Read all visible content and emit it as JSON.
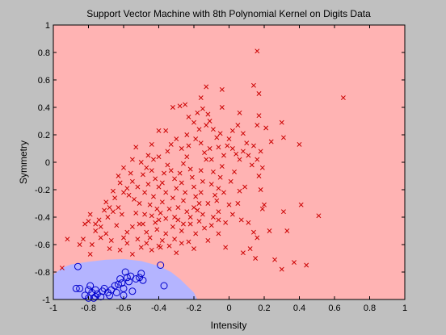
{
  "chart_data": {
    "type": "scatter",
    "title": "Support Vector Machine with 8th Polynomial Kernel on Digits Data",
    "xlabel": "Intensity",
    "ylabel": "Symmetry",
    "xlim": [
      -1,
      1
    ],
    "ylim": [
      -1,
      1
    ],
    "x_ticks": [
      "-1",
      "-0.8",
      "-0.6",
      "-0.4",
      "-0.2",
      "0",
      "0.2",
      "0.4",
      "0.6",
      "0.8",
      "1"
    ],
    "y_ticks": [
      "-1",
      "-0.8",
      "-0.6",
      "-0.4",
      "-0.2",
      "0",
      "0.2",
      "0.4",
      "0.6",
      "0.8",
      "1"
    ],
    "grid": false,
    "legend": "none",
    "colors": {
      "background": "#c0c0c0",
      "region_positive": "#ffb3b3",
      "region_negative": "#b4b4ff",
      "marker_x": "#cc0000",
      "marker_o": "#0000cc"
    },
    "decision_boundary": [
      [
        -1.0,
        -0.82
      ],
      [
        -0.95,
        -0.77
      ],
      [
        -0.9,
        -0.745
      ],
      [
        -0.8,
        -0.725
      ],
      [
        -0.7,
        -0.71
      ],
      [
        -0.6,
        -0.705
      ],
      [
        -0.5,
        -0.72
      ],
      [
        -0.4,
        -0.755
      ],
      [
        -0.33,
        -0.8
      ],
      [
        -0.28,
        -0.85
      ],
      [
        -0.24,
        -0.9
      ],
      [
        -0.2,
        -0.95
      ],
      [
        -0.18,
        -1.0
      ]
    ],
    "series": [
      {
        "marker": "x",
        "points": [
          [
            0.16,
            0.81
          ],
          [
            0.65,
            0.47
          ],
          [
            0.14,
            0.56
          ],
          [
            0.17,
            0.5
          ],
          [
            -0.13,
            0.55
          ],
          [
            -0.04,
            0.53
          ],
          [
            -0.16,
            0.47
          ],
          [
            -0.04,
            0.4
          ],
          [
            -0.15,
            0.39
          ],
          [
            -0.25,
            0.42
          ],
          [
            -0.28,
            0.41
          ],
          [
            -0.32,
            0.4
          ],
          [
            -0.12,
            0.35
          ],
          [
            0.06,
            0.36
          ],
          [
            0.17,
            0.34
          ],
          [
            0.3,
            0.29
          ],
          [
            0.16,
            0.27
          ],
          [
            0.21,
            0.25
          ],
          [
            0.31,
            0.18
          ],
          [
            0.4,
            0.13
          ],
          [
            0.24,
            0.15
          ],
          [
            0.14,
            0.12
          ],
          [
            0.18,
            0.08
          ],
          [
            0.02,
            0.1
          ],
          [
            0.04,
            0.06
          ],
          [
            -0.06,
            0.11
          ],
          [
            -0.16,
            0.14
          ],
          [
            -0.24,
            0.2
          ],
          [
            -0.36,
            0.23
          ],
          [
            -0.4,
            0.23
          ],
          [
            -0.44,
            0.13
          ],
          [
            -0.53,
            0.11
          ],
          [
            -0.55,
            0.02
          ],
          [
            -0.6,
            -0.04
          ],
          [
            -0.63,
            -0.1
          ],
          [
            -0.66,
            -0.21
          ],
          [
            -0.7,
            -0.29
          ],
          [
            -0.79,
            -0.38
          ],
          [
            -0.82,
            -0.45
          ],
          [
            -0.92,
            -0.56
          ],
          [
            -0.95,
            -0.77
          ],
          [
            -0.79,
            -0.67
          ],
          [
            -0.73,
            -0.55
          ],
          [
            -0.58,
            -0.51
          ],
          [
            -0.58,
            -0.59
          ],
          [
            -0.4,
            -0.61
          ],
          [
            -0.39,
            -0.62
          ],
          [
            -0.3,
            -0.66
          ],
          [
            -0.2,
            -0.63
          ],
          [
            -0.12,
            -0.57
          ],
          [
            -0.06,
            -0.52
          ],
          [
            -0.02,
            -0.62
          ],
          [
            0.08,
            -0.66
          ],
          [
            0.12,
            -0.63
          ],
          [
            0.15,
            -0.7
          ],
          [
            0.26,
            -0.71
          ],
          [
            0.3,
            -0.78
          ],
          [
            0.44,
            -0.75
          ],
          [
            0.37,
            -0.73
          ],
          [
            0.23,
            -0.5
          ],
          [
            0.33,
            -0.5
          ],
          [
            0.51,
            -0.39
          ],
          [
            0.41,
            -0.31
          ],
          [
            0.31,
            -0.36
          ],
          [
            0.2,
            -0.31
          ],
          [
            0.19,
            -0.34
          ],
          [
            0.18,
            -0.2
          ],
          [
            0.17,
            -0.1
          ],
          [
            0.09,
            -0.18
          ],
          [
            0.06,
            -0.21
          ],
          [
            0.05,
            -0.3
          ],
          [
            0.0,
            -0.31
          ],
          [
            -0.06,
            -0.36
          ],
          [
            -0.09,
            -0.4
          ],
          [
            -0.15,
            -0.38
          ],
          [
            -0.17,
            -0.43
          ],
          [
            -0.22,
            -0.45
          ],
          [
            -0.27,
            -0.5
          ],
          [
            -0.32,
            -0.47
          ],
          [
            -0.36,
            -0.41
          ],
          [
            -0.4,
            -0.42
          ],
          [
            -0.44,
            -0.39
          ],
          [
            -0.48,
            -0.38
          ],
          [
            -0.51,
            -0.45
          ],
          [
            -0.55,
            -0.47
          ],
          [
            -0.61,
            -0.38
          ],
          [
            -0.63,
            -0.33
          ],
          [
            -0.66,
            -0.36
          ],
          [
            -0.69,
            -0.4
          ],
          [
            -0.73,
            -0.47
          ],
          [
            -0.76,
            -0.5
          ],
          [
            -0.83,
            -0.56
          ],
          [
            -0.85,
            -0.6
          ],
          [
            -0.78,
            -0.6
          ],
          [
            -0.68,
            -0.63
          ],
          [
            -0.62,
            -0.64
          ],
          [
            -0.55,
            -0.67
          ],
          [
            -0.5,
            -0.62
          ],
          [
            -0.45,
            -0.55
          ],
          [
            -0.41,
            -0.49
          ],
          [
            -0.36,
            -0.52
          ],
          [
            -0.31,
            -0.56
          ],
          [
            -0.27,
            -0.59
          ],
          [
            -0.23,
            -0.58
          ],
          [
            -0.19,
            -0.52
          ],
          [
            -0.14,
            -0.48
          ],
          [
            -0.1,
            -0.46
          ],
          [
            -0.06,
            -0.42
          ],
          [
            -0.02,
            -0.44
          ],
          [
            0.02,
            -0.38
          ],
          [
            0.07,
            -0.42
          ],
          [
            0.11,
            -0.44
          ],
          [
            0.14,
            -0.51
          ],
          [
            0.16,
            -0.55
          ],
          [
            -0.6,
            -0.22
          ],
          [
            -0.57,
            -0.24
          ],
          [
            -0.58,
            -0.19
          ],
          [
            -0.55,
            -0.14
          ],
          [
            -0.52,
            -0.18
          ],
          [
            -0.54,
            -0.27
          ],
          [
            -0.51,
            -0.3
          ],
          [
            -0.48,
            -0.22
          ],
          [
            -0.46,
            -0.16
          ],
          [
            -0.49,
            -0.09
          ],
          [
            -0.47,
            -0.04
          ],
          [
            -0.44,
            -0.06
          ],
          [
            -0.42,
            -0.12
          ],
          [
            -0.4,
            -0.18
          ],
          [
            -0.43,
            -0.25
          ],
          [
            -0.45,
            -0.31
          ],
          [
            -0.41,
            -0.34
          ],
          [
            -0.38,
            -0.29
          ],
          [
            -0.36,
            -0.22
          ],
          [
            -0.38,
            -0.15
          ],
          [
            -0.37,
            -0.08
          ],
          [
            -0.35,
            -0.02
          ],
          [
            -0.33,
            -0.06
          ],
          [
            -0.31,
            -0.12
          ],
          [
            -0.3,
            -0.19
          ],
          [
            -0.32,
            -0.26
          ],
          [
            -0.29,
            -0.33
          ],
          [
            -0.26,
            -0.28
          ],
          [
            -0.25,
            -0.22
          ],
          [
            -0.27,
            -0.15
          ],
          [
            -0.28,
            -0.08
          ],
          [
            -0.26,
            -0.01
          ],
          [
            -0.24,
            0.04
          ],
          [
            -0.22,
            -0.05
          ],
          [
            -0.21,
            -0.11
          ],
          [
            -0.2,
            -0.18
          ],
          [
            -0.19,
            -0.25
          ],
          [
            -0.17,
            -0.3
          ],
          [
            -0.16,
            -0.22
          ],
          [
            -0.15,
            -0.14
          ],
          [
            -0.16,
            -0.06
          ],
          [
            -0.13,
            0.02
          ],
          [
            -0.14,
            0.07
          ],
          [
            -0.11,
            0.1
          ],
          [
            -0.1,
            0.02
          ],
          [
            -0.09,
            -0.07
          ],
          [
            -0.1,
            -0.16
          ],
          [
            -0.08,
            -0.24
          ],
          [
            -0.06,
            -0.19
          ],
          [
            -0.05,
            -0.11
          ],
          [
            -0.04,
            -0.03
          ],
          [
            -0.03,
            0.05
          ],
          [
            -0.01,
            0.12
          ],
          [
            0.0,
            0.17
          ],
          [
            0.02,
            0.23
          ],
          [
            0.05,
            0.27
          ],
          [
            0.08,
            0.21
          ],
          [
            0.1,
            0.14
          ],
          [
            0.11,
            0.05
          ],
          [
            0.13,
            -0.02
          ],
          [
            0.16,
            0.02
          ],
          [
            0.19,
            -0.04
          ],
          [
            -0.35,
            0.08
          ],
          [
            -0.33,
            0.13
          ],
          [
            -0.3,
            0.17
          ],
          [
            -0.27,
            0.1
          ],
          [
            -0.23,
            0.12
          ],
          [
            -0.19,
            0.17
          ],
          [
            -0.17,
            0.24
          ],
          [
            -0.13,
            0.27
          ],
          [
            -0.09,
            0.24
          ],
          [
            -0.07,
            0.18
          ],
          [
            -0.05,
            0.21
          ],
          [
            -0.2,
            0.29
          ],
          [
            -0.23,
            0.33
          ],
          [
            -0.18,
            0.36
          ],
          [
            -0.11,
            0.3
          ],
          [
            -0.4,
            0.04
          ],
          [
            -0.43,
            0.02
          ],
          [
            -0.46,
            0.05
          ],
          [
            -0.5,
            0.0
          ],
          [
            -0.56,
            -0.08
          ],
          [
            -0.62,
            -0.15
          ],
          [
            -0.65,
            -0.26
          ],
          [
            -0.68,
            -0.33
          ],
          [
            -0.71,
            -0.35
          ],
          [
            -0.74,
            -0.42
          ],
          [
            -0.76,
            -0.45
          ],
          [
            -0.8,
            -0.43
          ],
          [
            -0.64,
            -0.46
          ],
          [
            -0.7,
            -0.52
          ],
          [
            -0.67,
            -0.57
          ],
          [
            -0.6,
            -0.55
          ],
          [
            -0.52,
            -0.56
          ],
          [
            -0.47,
            -0.59
          ],
          [
            -0.44,
            -0.64
          ],
          [
            -0.38,
            -0.57
          ],
          [
            -0.34,
            -0.61
          ],
          [
            -0.29,
            -0.42
          ],
          [
            -0.24,
            -0.36
          ],
          [
            -0.2,
            -0.33
          ],
          [
            -0.12,
            -0.3
          ],
          [
            -0.07,
            -0.28
          ],
          [
            -0.03,
            -0.22
          ],
          [
            0.01,
            -0.14
          ],
          [
            0.03,
            -0.07
          ],
          [
            0.06,
            0.02
          ],
          [
            0.08,
            0.08
          ],
          [
            -0.53,
            -0.37
          ],
          [
            -0.49,
            -0.45
          ],
          [
            -0.47,
            -0.51
          ],
          [
            -0.42,
            -0.44
          ],
          [
            -0.39,
            -0.37
          ],
          [
            -0.34,
            -0.34
          ],
          [
            -0.31,
            -0.4
          ],
          [
            -0.26,
            -0.45
          ],
          [
            -0.22,
            -0.4
          ],
          [
            -0.18,
            -0.35
          ]
        ]
      },
      {
        "marker": "o",
        "points": [
          [
            -0.39,
            -0.75
          ],
          [
            -0.86,
            -0.76
          ],
          [
            -0.87,
            -0.92
          ],
          [
            -0.85,
            -0.92
          ],
          [
            -0.82,
            -0.97
          ],
          [
            -0.8,
            -0.93
          ],
          [
            -0.79,
            -0.9
          ],
          [
            -0.78,
            -0.95
          ],
          [
            -0.77,
            -0.99
          ],
          [
            -0.76,
            -0.93
          ],
          [
            -0.75,
            -0.96
          ],
          [
            -0.73,
            -0.98
          ],
          [
            -0.72,
            -0.94
          ],
          [
            -0.71,
            -0.92
          ],
          [
            -0.69,
            -0.95
          ],
          [
            -0.68,
            -0.97
          ],
          [
            -0.67,
            -0.93
          ],
          [
            -0.65,
            -0.9
          ],
          [
            -0.64,
            -0.95
          ],
          [
            -0.63,
            -0.89
          ],
          [
            -0.62,
            -0.85
          ],
          [
            -0.61,
            -0.88
          ],
          [
            -0.6,
            -0.92
          ],
          [
            -0.59,
            -0.8
          ],
          [
            -0.58,
            -0.84
          ],
          [
            -0.57,
            -0.87
          ],
          [
            -0.56,
            -0.83
          ],
          [
            -0.55,
            -0.94
          ],
          [
            -0.53,
            -0.85
          ],
          [
            -0.51,
            -0.84
          ],
          [
            -0.5,
            -0.81
          ],
          [
            -0.49,
            -0.86
          ],
          [
            -0.37,
            -0.9
          ],
          [
            -0.6,
            -0.97
          ],
          [
            -0.76,
            -0.98
          ],
          [
            -0.8,
            -0.99
          ]
        ]
      }
    ]
  }
}
